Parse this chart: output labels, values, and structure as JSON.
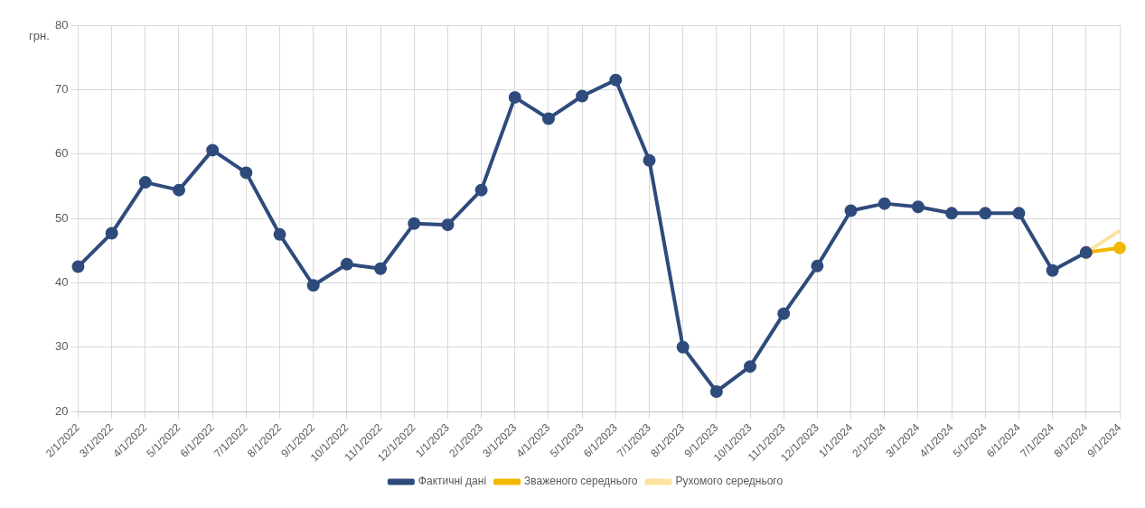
{
  "chart_data": {
    "type": "line",
    "ylabel": "грн.",
    "categories": [
      "2/1/2022",
      "3/1/2022",
      "4/1/2022",
      "5/1/2022",
      "6/1/2022",
      "7/1/2022",
      "8/1/2022",
      "9/1/2022",
      "10/1/2022",
      "11/1/2022",
      "12/1/2022",
      "1/1/2023",
      "2/1/2023",
      "3/1/2023",
      "4/1/2023",
      "5/1/2023",
      "6/1/2023",
      "7/1/2023",
      "8/1/2023",
      "9/1/2023",
      "10/1/2023",
      "11/1/2023",
      "12/1/2023",
      "1/1/2024",
      "2/1/2024",
      "3/1/2024",
      "4/1/2024",
      "5/1/2024",
      "6/1/2024",
      "7/1/2024",
      "8/1/2024",
      "9/1/2024"
    ],
    "series": [
      {
        "name": "Рухомого середнього",
        "color": "#fbe3a0",
        "marker": "none",
        "values": [
          null,
          null,
          null,
          null,
          null,
          null,
          null,
          null,
          null,
          null,
          null,
          null,
          null,
          null,
          null,
          null,
          null,
          null,
          null,
          null,
          null,
          null,
          null,
          null,
          null,
          null,
          null,
          null,
          null,
          null,
          44.7,
          48.1
        ]
      },
      {
        "name": "Зваженого середнього",
        "color": "#f2b800",
        "marker": "circle",
        "values": [
          null,
          null,
          null,
          null,
          null,
          null,
          null,
          null,
          null,
          null,
          null,
          null,
          null,
          null,
          null,
          null,
          null,
          null,
          null,
          null,
          null,
          null,
          null,
          null,
          null,
          null,
          null,
          null,
          null,
          null,
          44.7,
          45.4
        ]
      },
      {
        "name": "Фактичні дані",
        "color": "#2f4b7c",
        "marker": "circle",
        "values": [
          42.5,
          47.7,
          55.6,
          54.4,
          60.6,
          57.1,
          47.5,
          39.6,
          42.9,
          42.2,
          49.2,
          49.0,
          54.4,
          68.8,
          65.5,
          69.0,
          71.5,
          59.0,
          30.0,
          23.1,
          27.0,
          35.2,
          42.6,
          51.2,
          52.3,
          51.8,
          50.8,
          50.8,
          50.8,
          41.9,
          44.7,
          null
        ]
      }
    ],
    "ylim": [
      20,
      80
    ],
    "yticks": [
      20,
      30,
      40,
      50,
      60,
      70,
      80
    ],
    "grid": true,
    "legend": "bottom",
    "line_style": "solid"
  }
}
